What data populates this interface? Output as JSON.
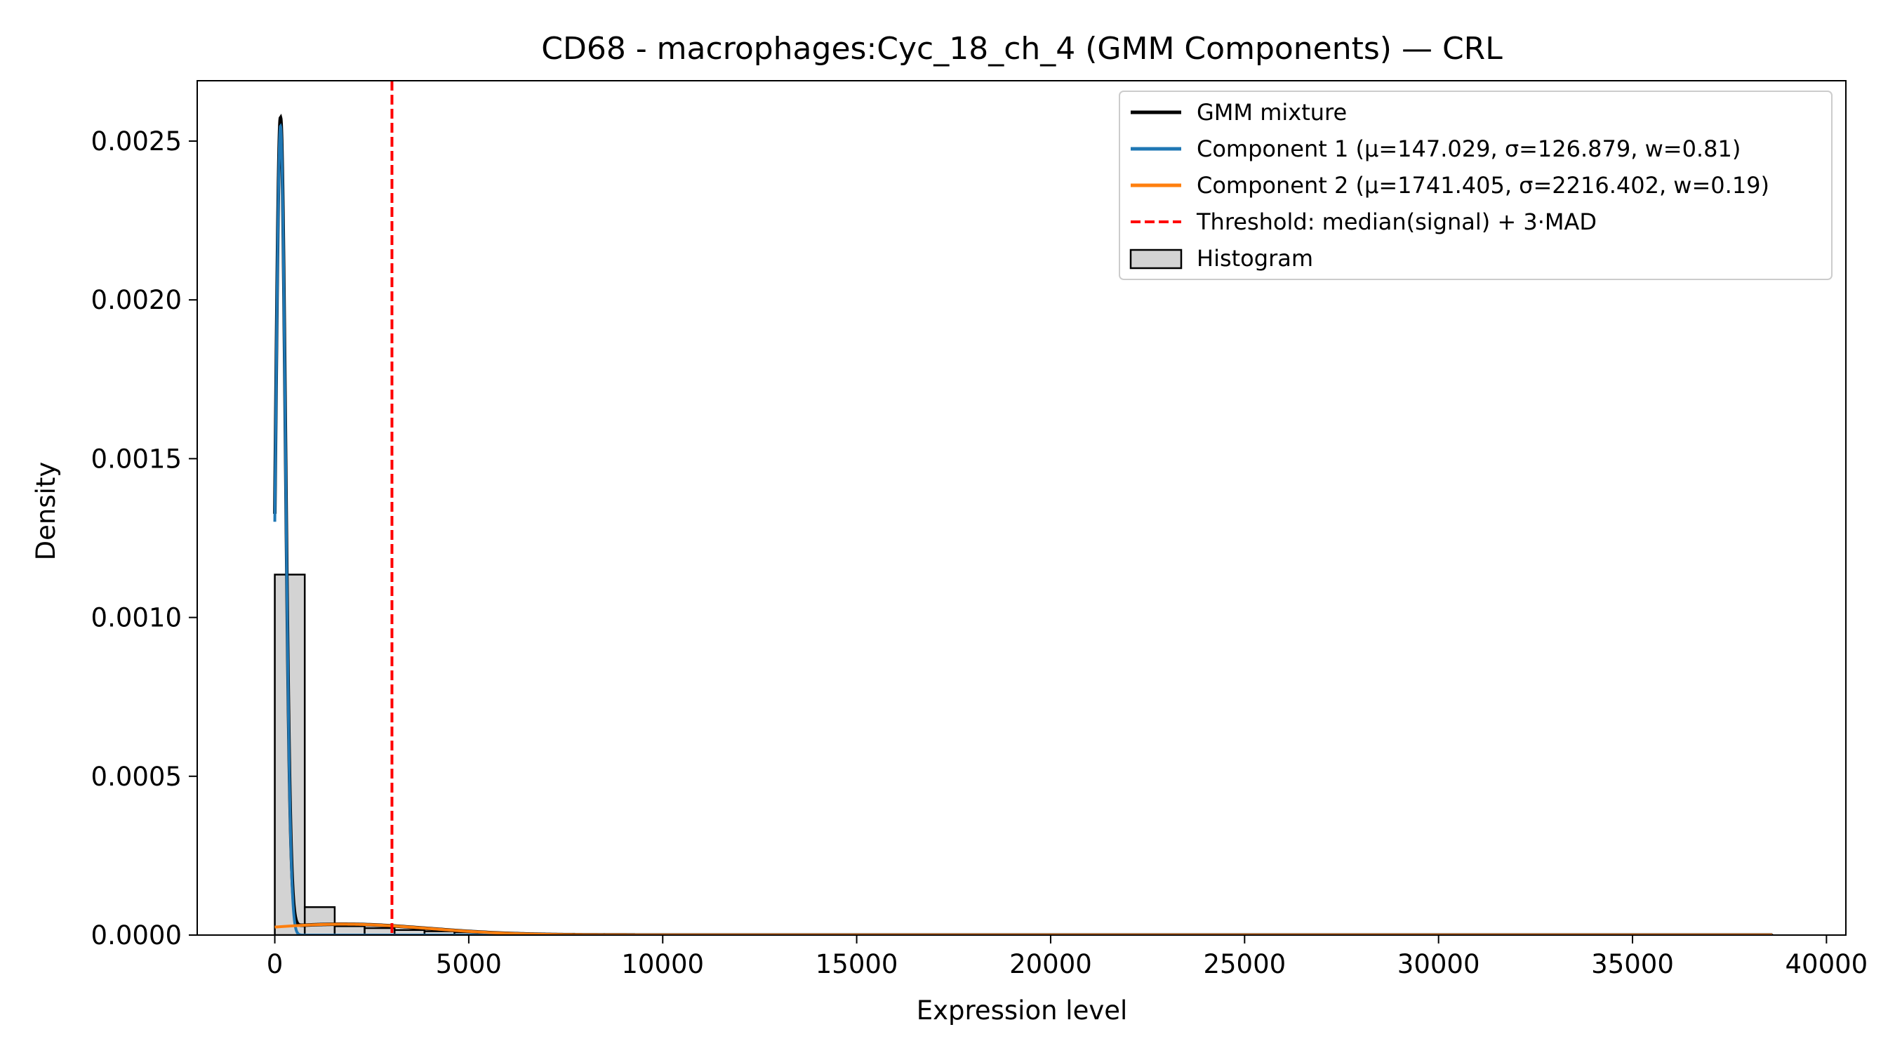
{
  "chart_data": {
    "type": "histogram",
    "title": "CD68 - macrophages:Cyc_18_ch_4 (GMM Components) — CRL",
    "xlabel": "Expression level",
    "ylabel": "Density",
    "xlim": [
      -2000,
      40500
    ],
    "ylim": [
      0,
      0.00269
    ],
    "xticks": [
      0,
      5000,
      10000,
      15000,
      20000,
      25000,
      30000,
      35000,
      40000
    ],
    "xtick_labels": [
      "0",
      "5000",
      "10000",
      "15000",
      "20000",
      "25000",
      "30000",
      "35000",
      "40000"
    ],
    "yticks": [
      0,
      0.0005,
      0.001,
      0.0015,
      0.002,
      0.0025
    ],
    "ytick_labels": [
      "0.0000",
      "0.0005",
      "0.0010",
      "0.0015",
      "0.0020",
      "0.0025"
    ],
    "grid": false,
    "legend_position": "top-right",
    "histogram": {
      "name": "Histogram",
      "bin_edges": [
        0,
        772,
        1544,
        2316,
        3088,
        3860,
        4632,
        5404,
        6176,
        6948,
        7720,
        8492,
        9264,
        10036,
        10808,
        11580,
        12352,
        13124,
        13896,
        14668,
        15440,
        16212,
        16984,
        17756,
        18528,
        19300,
        20072,
        20844,
        21616,
        22388,
        23160,
        23932,
        24704,
        25476,
        26248,
        27020,
        27792,
        28564,
        29336,
        30108,
        30880,
        31652,
        32424,
        33196,
        33968,
        34740,
        35512,
        36284,
        37056,
        37828,
        38600
      ],
      "values": [
        0.001135,
        8.8e-05,
        2.8e-05,
        2.2e-05,
        1.6e-05,
        1.2e-05,
        9e-06,
        7e-06,
        5e-06,
        4e-06,
        3e-06,
        3e-06,
        2e-06,
        2e-06,
        1e-06,
        1e-06,
        1e-06,
        1e-06,
        1e-06,
        1e-06,
        0,
        0,
        0,
        0,
        0,
        0,
        0,
        0,
        0,
        0,
        0,
        0,
        0,
        0,
        0,
        0,
        0,
        0,
        0,
        0,
        0,
        0,
        0,
        0,
        0,
        0,
        0,
        0,
        0,
        1e-06
      ],
      "fill": "#d3d3d3",
      "edge": "#000000"
    },
    "series": [
      {
        "name": "GMM mixture",
        "kind": "gmm_mixture",
        "color": "#000000",
        "x_range": [
          0,
          38600
        ]
      },
      {
        "name": "Component 1 (μ=147.029, σ=126.879, w=0.81)",
        "kind": "normal",
        "mu": 147.029,
        "sigma": 126.879,
        "w": 0.81,
        "color": "#1f77b4",
        "x_range": [
          0,
          38600
        ]
      },
      {
        "name": "Component 2 (μ=1741.405, σ=2216.402, w=0.19)",
        "kind": "normal",
        "mu": 1741.405,
        "sigma": 2216.402,
        "w": 0.19,
        "color": "#ff7f0e",
        "x_range": [
          0,
          38600
        ]
      },
      {
        "name": "Threshold: median(signal) + 3·MAD",
        "kind": "vline",
        "x": 3020,
        "color": "#ff0000"
      }
    ]
  }
}
